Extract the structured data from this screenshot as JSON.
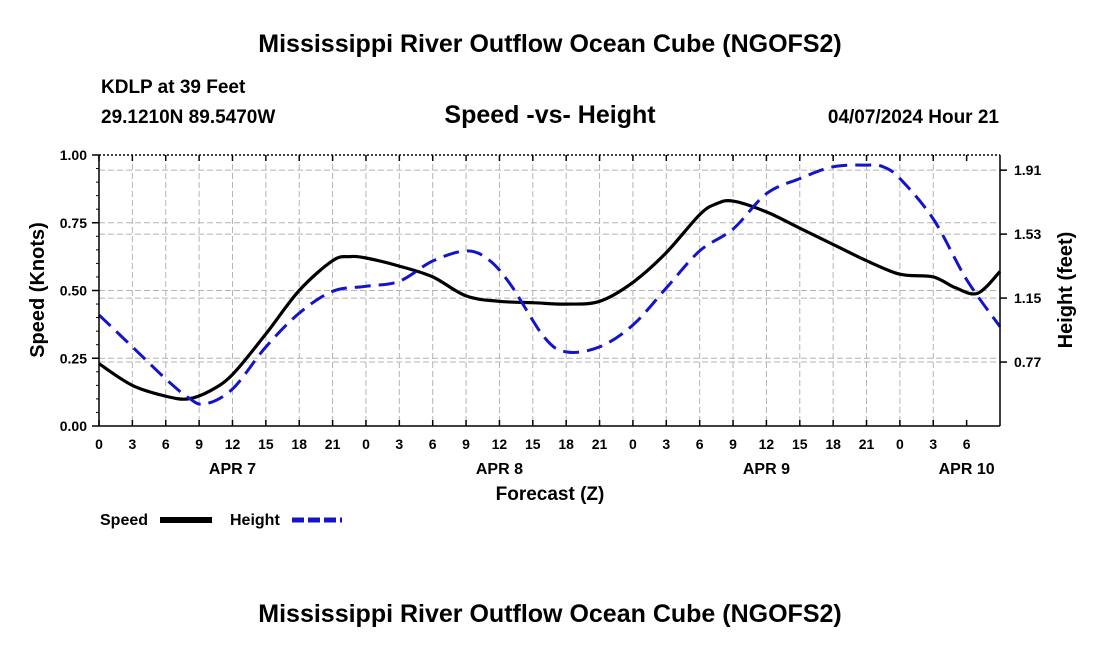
{
  "page": {
    "title_top": "Mississippi River Outflow Ocean Cube (NGOFS2)",
    "title_bottom": "Mississippi River Outflow Ocean Cube (NGOFS2)",
    "station": "KDLP at 39 Feet",
    "coords": "29.1210N  89.5470W",
    "subtitle": "Speed -vs- Height",
    "datetime": "04/07/2024 Hour 21"
  },
  "colors": {
    "speed": "#000000",
    "height": "#1414c8",
    "grid": "#b4b4b4"
  },
  "chart_data": {
    "type": "line",
    "title": "Speed -vs- Height",
    "xlabel": "Forecast (Z)",
    "ylabel": "Speed (Knots)",
    "y2label": "Height (feet)",
    "x_range_hours": [
      0,
      81
    ],
    "x_tick_labels": [
      "0",
      "3",
      "6",
      "9",
      "12",
      "15",
      "18",
      "21",
      "0",
      "3",
      "6",
      "9",
      "12",
      "15",
      "18",
      "21",
      "0",
      "3",
      "6",
      "9",
      "12",
      "15",
      "18",
      "21",
      "0",
      "3",
      "6"
    ],
    "day_labels": [
      {
        "hour": 12,
        "label": "APR 7"
      },
      {
        "hour": 36,
        "label": "APR 8"
      },
      {
        "hour": 60,
        "label": "APR 9"
      },
      {
        "hour": 78,
        "label": "APR 10"
      }
    ],
    "ylim": [
      0,
      1.0
    ],
    "y_ticks": [
      "0.00",
      "0.25",
      "0.50",
      "0.75",
      "1.00"
    ],
    "y2lim": [
      0.39,
      2.0
    ],
    "y2_ticks": [
      "0.77",
      "1.15",
      "1.53",
      "1.91"
    ],
    "grid": true,
    "series": [
      {
        "name": "Speed",
        "axis": "left",
        "style": "solid",
        "x": [
          0,
          3,
          6,
          8,
          10,
          12,
          15,
          18,
          21,
          22.5,
          24,
          27,
          30,
          33,
          36,
          39,
          42,
          45,
          48,
          51,
          54,
          55.5,
          57,
          60,
          63,
          66,
          69,
          72,
          75,
          77,
          79,
          81
        ],
        "y": [
          0.23,
          0.15,
          0.11,
          0.1,
          0.13,
          0.19,
          0.34,
          0.5,
          0.61,
          0.625,
          0.62,
          0.59,
          0.55,
          0.48,
          0.46,
          0.455,
          0.45,
          0.46,
          0.53,
          0.64,
          0.78,
          0.82,
          0.83,
          0.79,
          0.73,
          0.67,
          0.61,
          0.56,
          0.55,
          0.51,
          0.49,
          0.57
        ]
      },
      {
        "name": "Height",
        "axis": "right",
        "style": "dashed",
        "x": [
          0,
          3,
          6,
          8,
          9.5,
          12,
          15,
          18,
          21,
          24,
          27,
          30,
          33,
          35,
          37,
          40,
          42,
          45,
          48,
          51,
          54,
          57,
          60,
          63,
          66,
          69,
          70.5,
          72,
          75,
          78,
          81
        ],
        "y": [
          1.05,
          0.86,
          0.67,
          0.56,
          0.52,
          0.61,
          0.86,
          1.06,
          1.19,
          1.22,
          1.25,
          1.37,
          1.43,
          1.38,
          1.23,
          0.92,
          0.83,
          0.86,
          0.99,
          1.21,
          1.43,
          1.56,
          1.77,
          1.86,
          1.93,
          1.94,
          1.93,
          1.86,
          1.62,
          1.26,
          0.98
        ]
      }
    ]
  }
}
